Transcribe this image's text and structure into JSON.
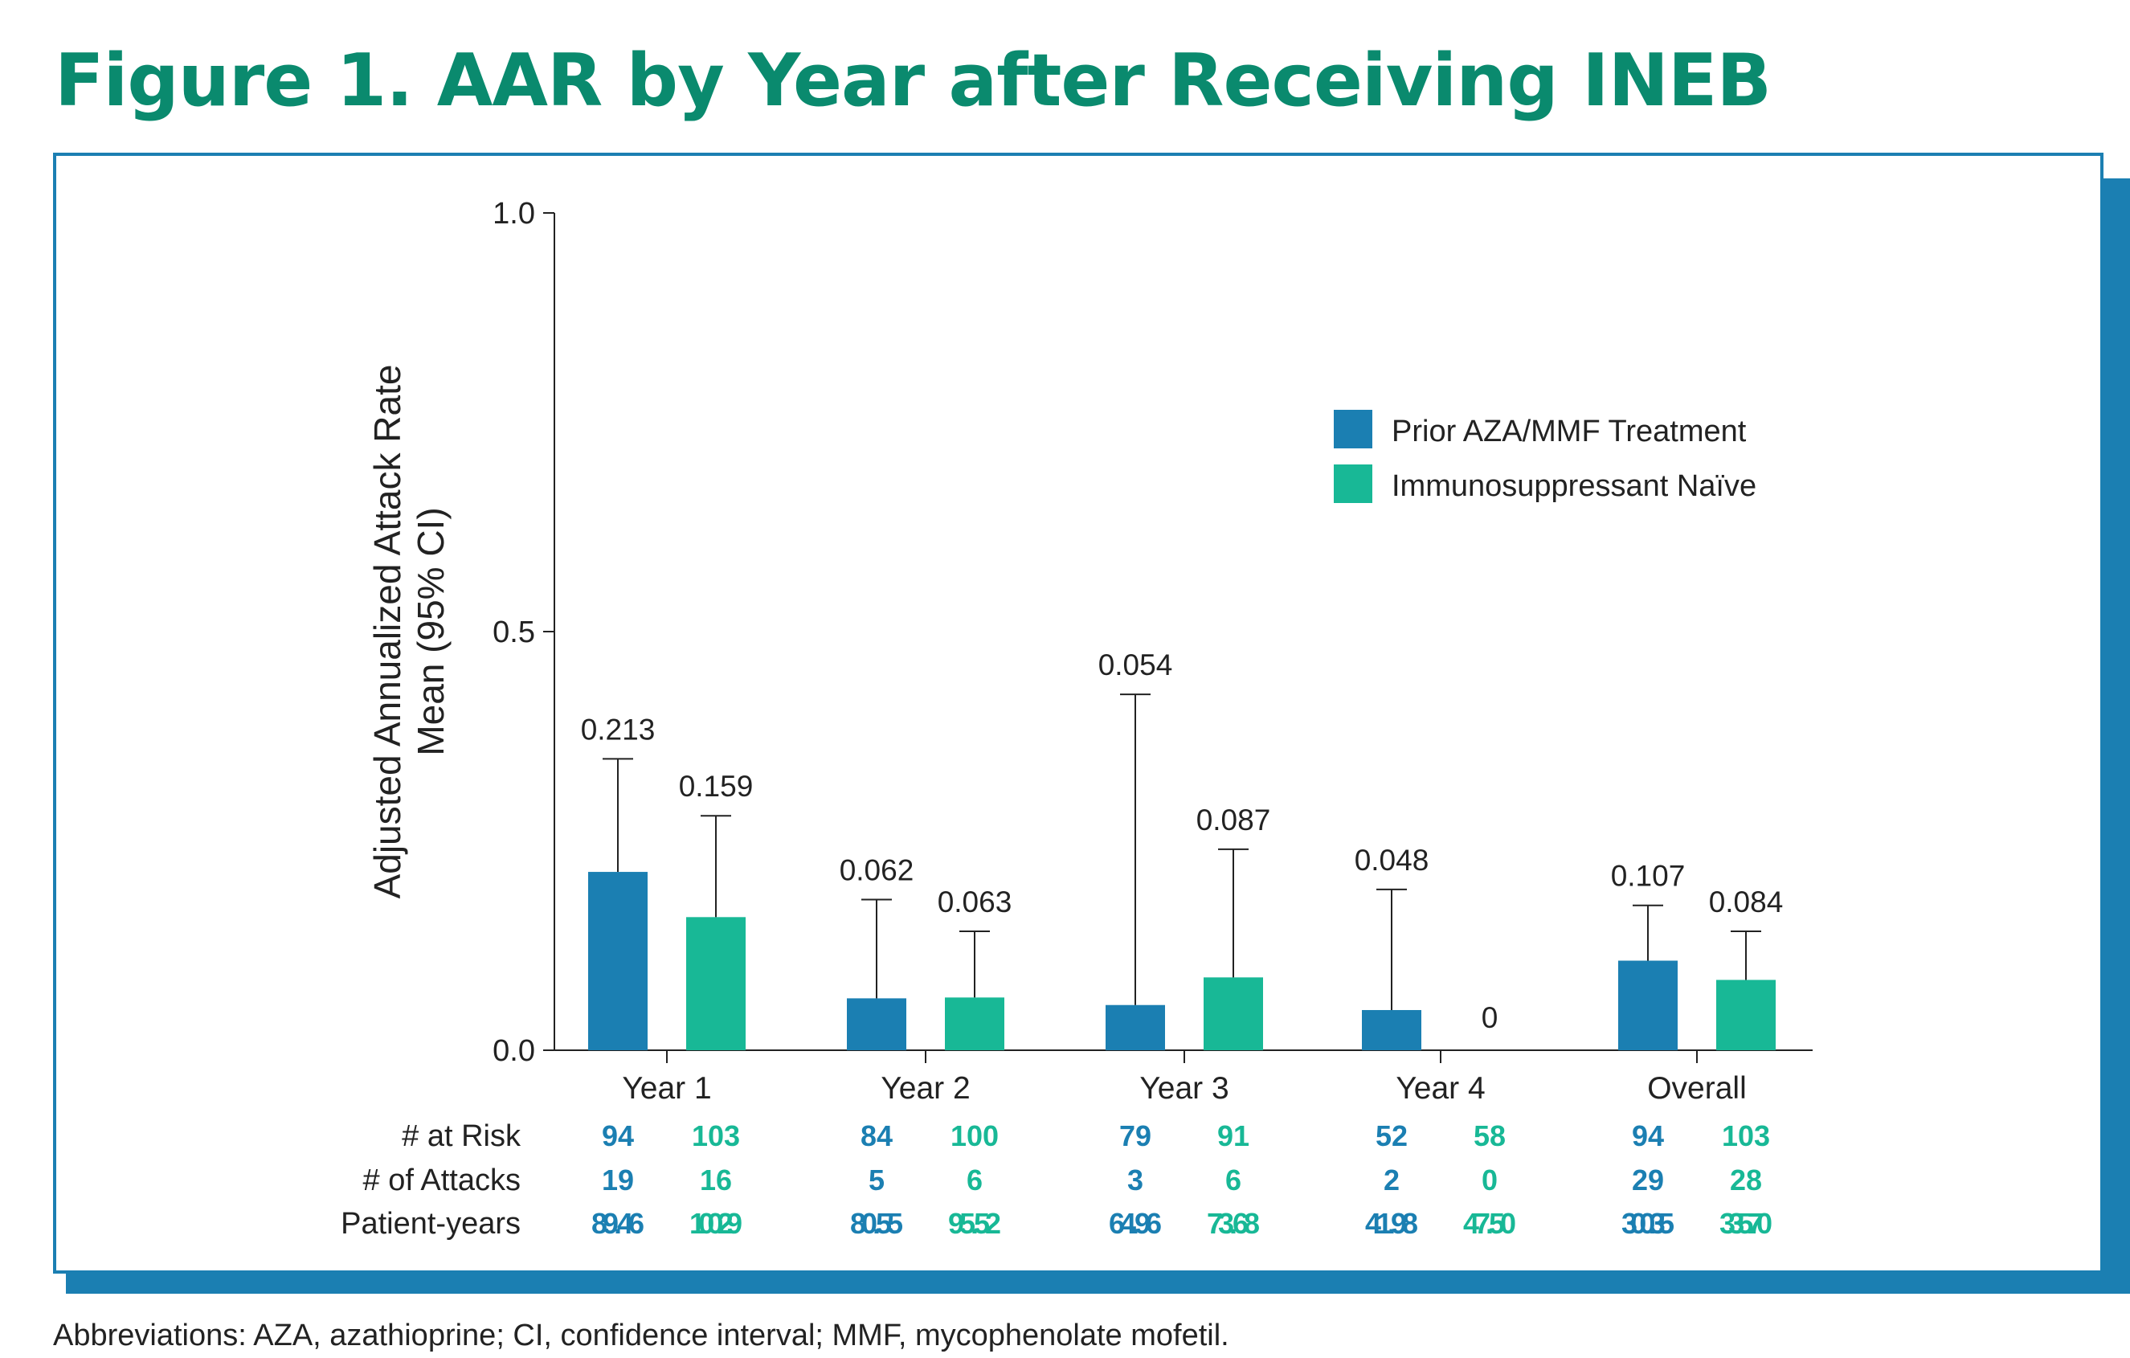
{
  "title": "Figure 1. AAR by Year after Receiving INEB",
  "footnote": "Abbreviations: AZA, azathioprine; CI, confidence interval; MMF, mycophenolate mofetil.",
  "colors": {
    "title": "#0a8a6e",
    "frame": "#1b7fb2",
    "series_1": "#1b7fb2",
    "series_2": "#18b896"
  },
  "chart_data": {
    "type": "bar",
    "ylabel_line1": "Adjusted Annualized Attack Rate",
    "ylabel_line2": "Mean (95% CI)",
    "ylim": [
      0,
      1.0
    ],
    "yticks": [
      "0.0",
      "0.5",
      "1.0"
    ],
    "ytick_values": [
      0,
      0.5,
      1.0
    ],
    "grid": false,
    "legend_position": "top-right",
    "categories": [
      "Year 1",
      "Year 2",
      "Year 3",
      "Year 4",
      "Overall"
    ],
    "series": [
      {
        "name": "Prior AZA/MMF Treatment",
        "color": "#1b7fb2",
        "values": [
          0.213,
          0.062,
          0.054,
          0.048,
          0.107
        ],
        "labels": [
          "0.213",
          "0.062",
          "0.054",
          "0.048",
          "0.107"
        ],
        "ci_upper": [
          0.348,
          0.18,
          0.425,
          0.192,
          0.173
        ],
        "at_risk": [
          "94",
          "84",
          "79",
          "52",
          "94"
        ],
        "attacks": [
          "19",
          "5",
          "3",
          "2",
          "29"
        ],
        "patient_years": [
          "89.46",
          "80.55",
          "64.96",
          "41.98",
          "300.35"
        ]
      },
      {
        "name": "Immunosuppressant Naïve",
        "color": "#18b896",
        "values": [
          0.159,
          0.063,
          0.087,
          0,
          0.084
        ],
        "labels": [
          "0.159",
          "0.063",
          "0.087",
          "0",
          "0.084"
        ],
        "ci_upper": [
          0.28,
          0.142,
          0.24,
          null,
          0.142
        ],
        "at_risk": [
          "103",
          "100",
          "91",
          "58",
          "103"
        ],
        "attacks": [
          "16",
          "6",
          "6",
          "0",
          "28"
        ],
        "patient_years": [
          "100.29",
          "95.52",
          "73.68",
          "47.50",
          "335.70"
        ]
      }
    ],
    "table_row_labels": [
      "# at Risk",
      "# of Attacks",
      "Patient-years"
    ]
  }
}
